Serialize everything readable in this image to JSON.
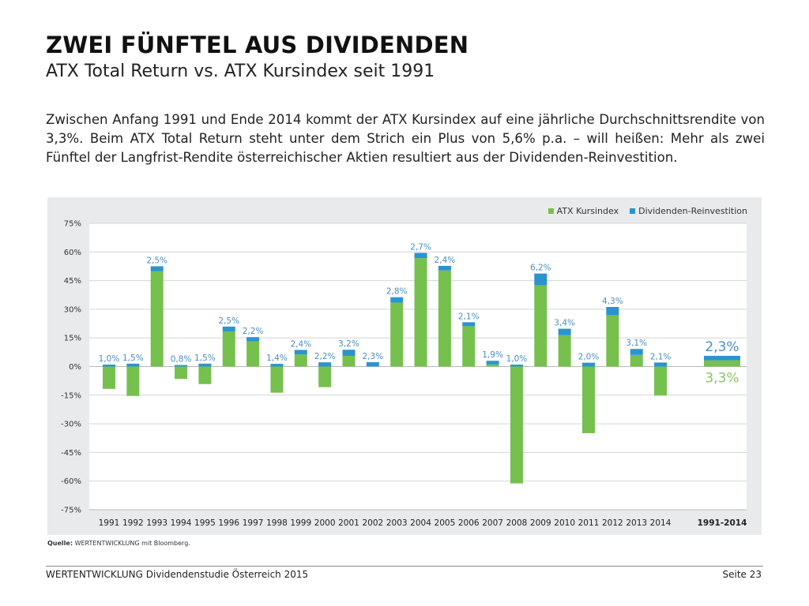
{
  "header": {
    "title": "ZWEI FÜNFTEL AUS DIVIDENDEN",
    "subtitle": "ATX Total Return vs. ATX Kursindex seit 1991"
  },
  "intro": "Zwischen Anfang 1991 und Ende 2014 kommt der ATX Kursindex auf eine jährliche Durchschnittsrendite von 3,3%. Beim ATX Total Return steht unter dem Strich ein Plus von 5,6% p.a. – will heißen: Mehr als zwei Fünftel der Langfrist-Rendite österreichischer Aktien resultiert aus der Dividenden-Reinvestition.",
  "source": {
    "prefix": "Quelle:",
    "text": " WERTENTWICKLUNG mit Bloomberg."
  },
  "footer": {
    "left": "WERTENTWICKLUNG Dividendenstudie Österreich 2015",
    "right": "Seite 23"
  },
  "colors": {
    "kursindex": "#76c04e",
    "dividenden": "#2b93cf",
    "dividend_label": "#4a8ec3",
    "summary_green_label": "#8cc26a"
  },
  "chart_data": {
    "type": "bar",
    "stacked": true,
    "title": "",
    "xlabel": "",
    "ylabel": "",
    "ylim": [
      -75,
      75
    ],
    "yticks": [
      75,
      60,
      45,
      30,
      15,
      0,
      -15,
      -30,
      -45,
      -60,
      -75
    ],
    "ytick_labels": [
      "75%",
      "60%",
      "45%",
      "30%",
      "15%",
      "0%",
      "-15%",
      "-30%",
      "-45%",
      "-60%",
      "-75%"
    ],
    "grid": true,
    "legend": {
      "position": "top-right",
      "entries": [
        "ATX Kursindex",
        "Dividenden-Reinvestition"
      ]
    },
    "categories": [
      "1991",
      "1992",
      "1993",
      "1994",
      "1995",
      "1996",
      "1997",
      "1998",
      "1999",
      "2000",
      "2001",
      "2002",
      "2003",
      "2004",
      "2005",
      "2006",
      "2007",
      "2008",
      "2009",
      "2010",
      "2011",
      "2012",
      "2013",
      "2014"
    ],
    "series": [
      {
        "name": "ATX Kursindex",
        "values": [
          -11.7,
          -15.4,
          50.0,
          -6.5,
          -9.2,
          18.4,
          13.2,
          -13.7,
          6.3,
          -10.8,
          5.6,
          0.0,
          33.5,
          56.8,
          50.3,
          21.1,
          1.1,
          -61.2,
          42.5,
          16.4,
          -34.9,
          26.9,
          6.1,
          -15.2
        ]
      },
      {
        "name": "Dividenden-Reinvestition",
        "values": [
          1.0,
          1.5,
          2.5,
          0.8,
          1.5,
          2.5,
          2.2,
          1.4,
          2.4,
          2.2,
          3.2,
          2.3,
          2.8,
          2.7,
          2.4,
          2.1,
          1.9,
          1.0,
          6.2,
          3.4,
          2.0,
          4.3,
          3.1,
          2.1
        ]
      }
    ],
    "data_labels": [
      "1,0%",
      "1,5%",
      "2,5%",
      "0,8%",
      "1,5%",
      "2,5%",
      "2,2%",
      "1,4%",
      "2,4%",
      "2,2%",
      "3,2%",
      "2,3%",
      "2,8%",
      "2,7%",
      "2,4%",
      "2,1%",
      "1,9%",
      "1,0%",
      "6,2%",
      "3,4%",
      "2,0%",
      "4,3%",
      "3,1%",
      "2,1%"
    ],
    "summary": {
      "category": "1991-2014",
      "kursindex": 3.3,
      "dividenden": 2.3,
      "kursindex_label": "3,3%",
      "dividenden_label": "2,3%"
    }
  }
}
